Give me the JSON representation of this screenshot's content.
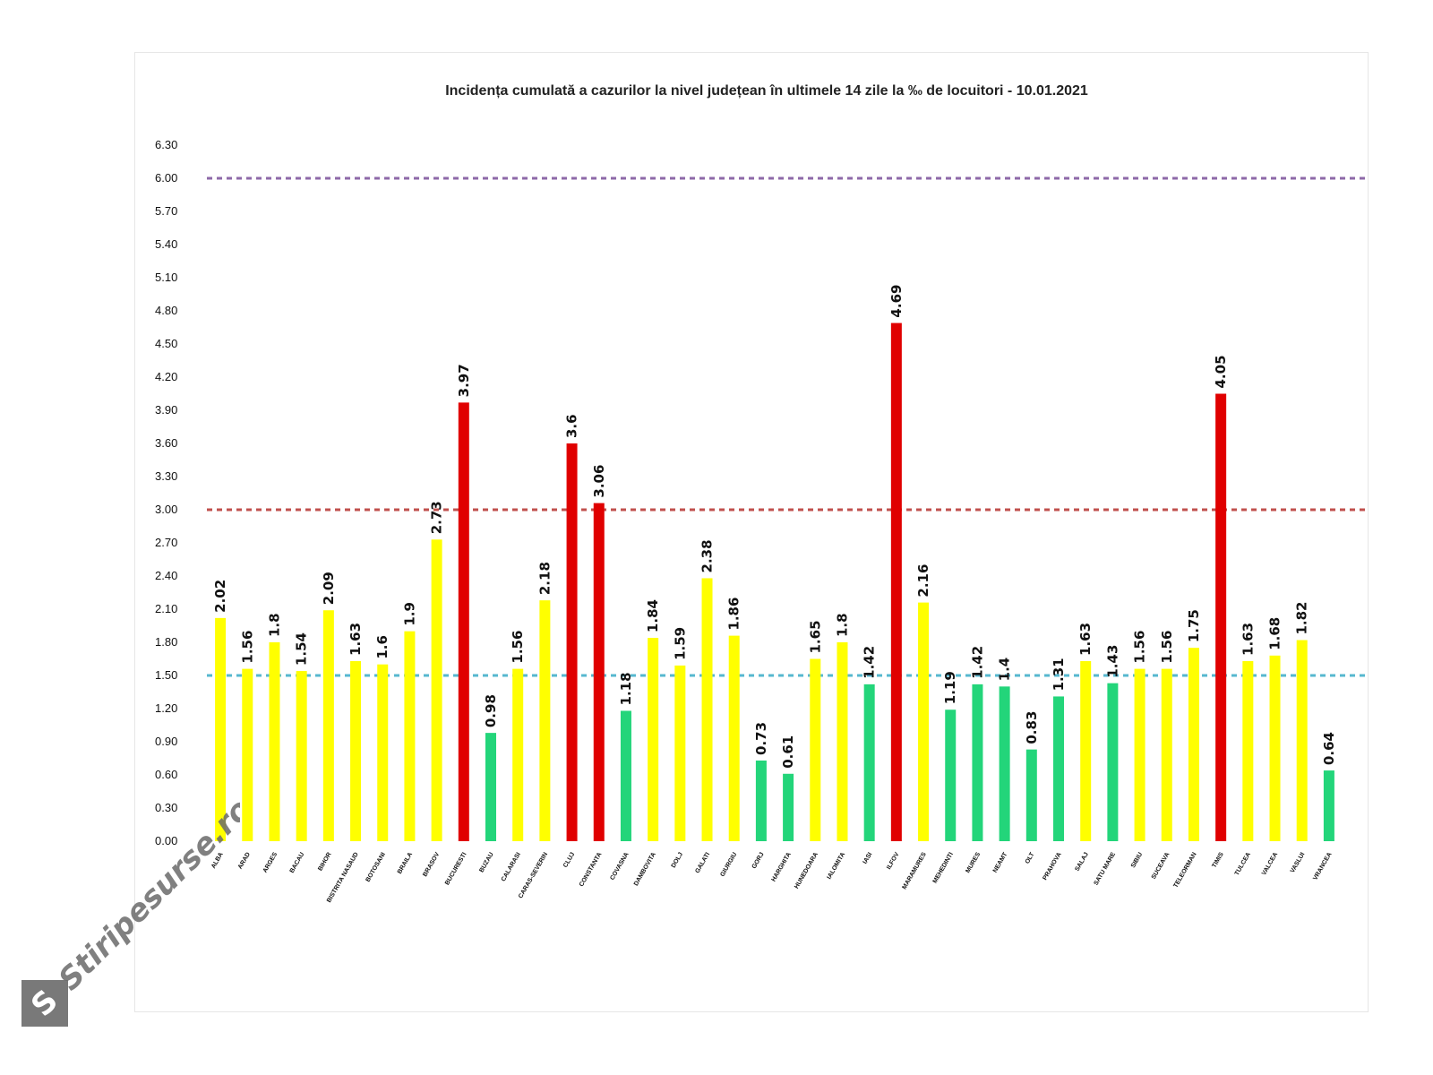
{
  "chart_data": {
    "type": "bar",
    "title": "Incidența cumulată a cazurilor la nivel județean în ultimele 14 zile la ‰ de locuitori - 10.01.2021",
    "xlabel": "",
    "ylabel": "",
    "ylim": [
      0,
      6.3
    ],
    "yticks": [
      "0.00",
      "0.30",
      "0.60",
      "0.90",
      "1.20",
      "1.50",
      "1.80",
      "2.10",
      "2.40",
      "2.70",
      "3.00",
      "3.30",
      "3.60",
      "3.90",
      "4.20",
      "4.50",
      "4.80",
      "5.10",
      "5.40",
      "5.70",
      "6.00",
      "6.30"
    ],
    "grid": false,
    "legend": "none",
    "categories": [
      "ALBA",
      "ARAD",
      "ARGES",
      "BACAU",
      "BIHOR",
      "BISTRITA NASAUD",
      "BOTOSANI",
      "BRAILA",
      "BRASOV",
      "BUCURESTI",
      "BUZAU",
      "CALARASI",
      "CARAS-SEVERIN",
      "CLUJ",
      "CONSTANTA",
      "COVASNA",
      "DAMBOVITA",
      "DOLJ",
      "GALATI",
      "GIURGIU",
      "GORJ",
      "HARGHITA",
      "HUNEDOARA",
      "IALOMITA",
      "IASI",
      "ILFOV",
      "MARAMURES",
      "MEHEDINTI",
      "MURES",
      "NEAMT",
      "OLT",
      "PRAHOVA",
      "SALAJ",
      "SATU MARE",
      "SIBIU",
      "SUCEAVA",
      "TELEORMAN",
      "TIMIS",
      "TULCEA",
      "VALCEA",
      "VASLUI",
      "VRANCEA"
    ],
    "values": [
      2.02,
      1.56,
      1.8,
      1.54,
      2.09,
      1.63,
      1.6,
      1.9,
      2.73,
      3.97,
      0.98,
      1.56,
      2.18,
      3.6,
      3.06,
      1.18,
      1.84,
      1.59,
      2.38,
      1.86,
      0.73,
      0.61,
      1.65,
      1.8,
      1.42,
      4.69,
      2.16,
      1.19,
      1.42,
      1.4,
      0.83,
      1.31,
      1.63,
      1.43,
      1.56,
      1.56,
      1.75,
      4.05,
      1.63,
      1.68,
      1.82,
      0.64
    ],
    "value_labels": [
      "2.02",
      "1.56",
      "1.8",
      "1.54",
      "2.09",
      "1.63",
      "1.6",
      "1.9",
      "2.73",
      "3.97",
      "0.98",
      "1.56",
      "2.18",
      "3.6",
      "3.06",
      "1.18",
      "1.84",
      "1.59",
      "2.38",
      "1.86",
      "0.73",
      "0.61",
      "1.65",
      "1.8",
      "1.42",
      "4.69",
      "2.16",
      "1.19",
      "1.42",
      "1.4",
      "0.83",
      "1.31",
      "1.63",
      "1.43",
      "1.56",
      "1.56",
      "1.75",
      "4.05",
      "1.63",
      "1.68",
      "1.82",
      "0.64"
    ],
    "bar_colors": [
      "yellow",
      "yellow",
      "yellow",
      "yellow",
      "yellow",
      "yellow",
      "yellow",
      "yellow",
      "yellow",
      "red",
      "green",
      "yellow",
      "yellow",
      "red",
      "red",
      "green",
      "yellow",
      "yellow",
      "yellow",
      "yellow",
      "green",
      "green",
      "yellow",
      "yellow",
      "green",
      "red",
      "yellow",
      "green",
      "green",
      "green",
      "green",
      "green",
      "yellow",
      "green",
      "yellow",
      "yellow",
      "yellow",
      "red",
      "yellow",
      "yellow",
      "yellow",
      "green"
    ],
    "thresholds": [
      {
        "value": 6.0,
        "color": "purple"
      },
      {
        "value": 3.0,
        "color": "red"
      },
      {
        "value": 1.5,
        "color": "cyan"
      }
    ]
  },
  "colors": {
    "yellow": "#ffff00",
    "green": "#23d57a",
    "red": "#e00000",
    "purple": "#8e69a8",
    "cyan": "#56b7cf",
    "threshold_red": "#c0504d"
  },
  "watermark": {
    "text": "Stiripesurse.ro",
    "icon": "s-logo-icon"
  }
}
